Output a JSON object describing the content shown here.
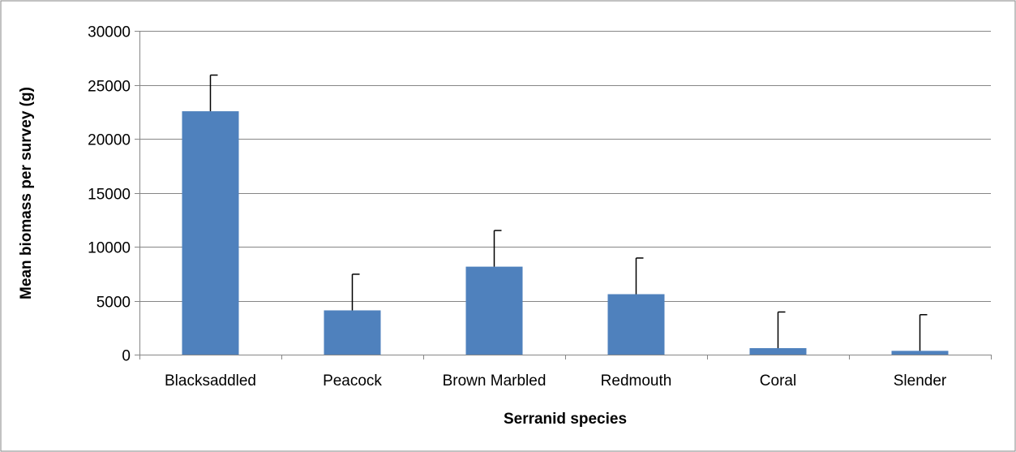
{
  "chart_data": {
    "type": "bar",
    "title": "",
    "xlabel": "Serranid species",
    "ylabel": "Mean biomass per survey (g)",
    "categories": [
      "Blacksaddled",
      "Peacock",
      "Brown Marbled",
      "Redmouth",
      "Coral",
      "Slender"
    ],
    "values": [
      22550,
      4100,
      8150,
      5600,
      600,
      350
    ],
    "error_upper": [
      3350,
      3350,
      3350,
      3350,
      3350,
      3350
    ],
    "yticks": [
      "0",
      "5000",
      "10000",
      "15000",
      "20000",
      "25000",
      "30000"
    ],
    "ylim": [
      0,
      30000
    ],
    "grid": true,
    "legend": "none",
    "colors": {
      "bar": "#4f81bd",
      "grid": "#868686",
      "axis": "#868686",
      "error_bar": "#000000",
      "frame": "#868686"
    }
  }
}
